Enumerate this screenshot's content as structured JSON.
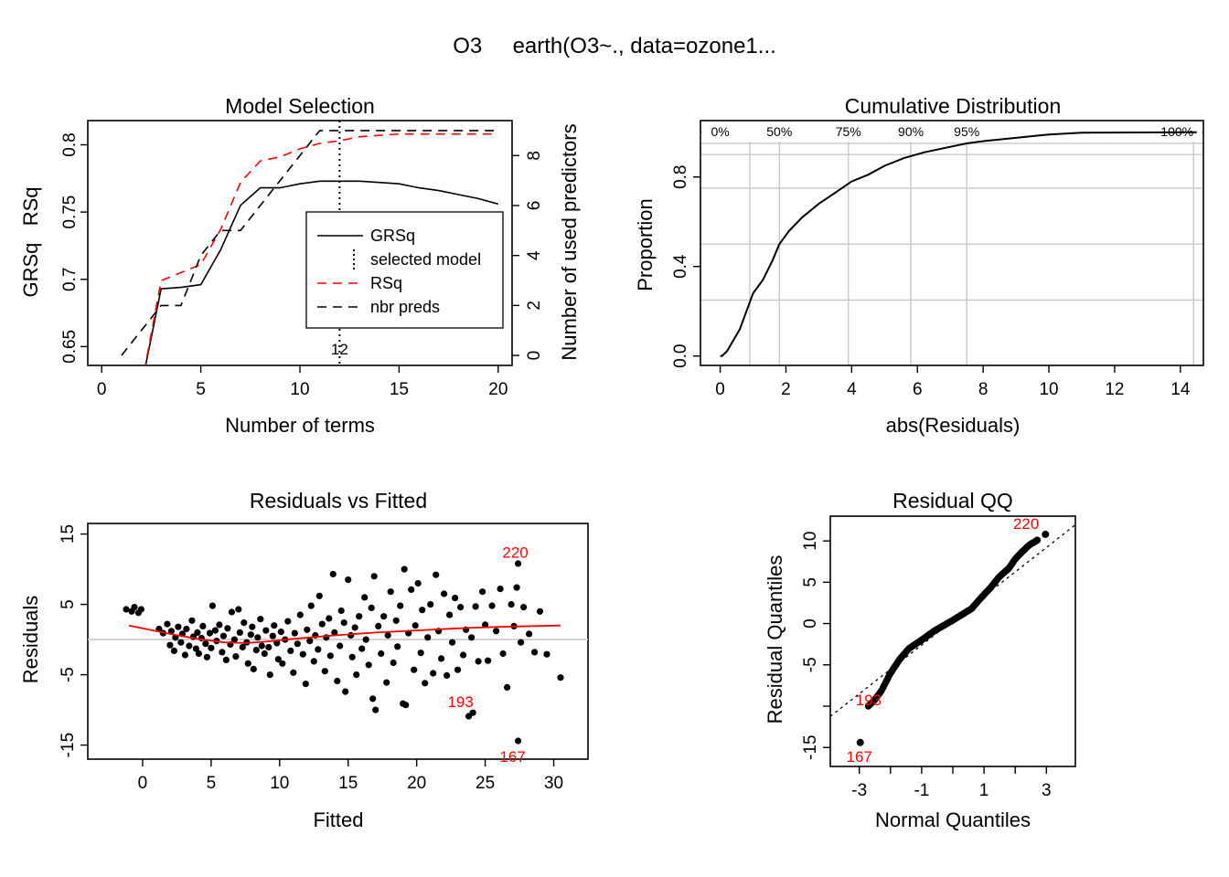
{
  "figure": {
    "title": "O3     earth(O3~., data=ozone1..."
  },
  "chart_data": [
    {
      "id": "model-selection",
      "type": "line",
      "title": "Model Selection",
      "xlabel": "Number of terms",
      "ylabel_left": "GRSq   RSq",
      "ylabel_right": "Number of used predictors",
      "xlim": [
        0,
        20
      ],
      "ylim_left": [
        0.636,
        0.818
      ],
      "ylim_right": [
        0,
        9
      ],
      "x_ticks": [
        "0",
        "5",
        "10",
        "15",
        "20"
      ],
      "y_ticks_left": [
        "0.65",
        "0.7",
        "0.75",
        "0.8"
      ],
      "y_ticks_right": [
        "0",
        "2",
        "4",
        "6",
        "8"
      ],
      "selected_model": 12,
      "selected_label": "12",
      "legend": {
        "position": "center-right",
        "items": [
          {
            "label": "GRSq",
            "style": "solid",
            "color": "#000000"
          },
          {
            "label": "selected model",
            "style": "dotted-vertical",
            "color": "#000000"
          },
          {
            "label": "RSq",
            "style": "dashed",
            "color": "#ff0000"
          },
          {
            "label": "nbr preds",
            "style": "dashed",
            "color": "#000000"
          }
        ]
      },
      "series": [
        {
          "name": "GRSq",
          "axis": "left",
          "color": "#000000",
          "style": "solid",
          "x": [
            2,
            3,
            4,
            5,
            6,
            7,
            8,
            9,
            10,
            11,
            12,
            13,
            14,
            15,
            16,
            17,
            18,
            19,
            20
          ],
          "values": [
            0.62,
            0.693,
            0.694,
            0.696,
            0.722,
            0.755,
            0.768,
            0.768,
            0.771,
            0.773,
            0.773,
            0.773,
            0.772,
            0.771,
            0.768,
            0.766,
            0.763,
            0.76,
            0.756
          ]
        },
        {
          "name": "RSq",
          "axis": "left",
          "color": "#ff0000",
          "style": "dashed",
          "x": [
            2,
            3,
            4,
            5,
            6,
            7,
            8,
            9,
            10,
            11,
            12,
            13,
            14,
            15,
            16,
            17,
            18,
            19,
            20
          ],
          "values": [
            0.62,
            0.699,
            0.705,
            0.711,
            0.737,
            0.772,
            0.788,
            0.791,
            0.797,
            0.801,
            0.803,
            0.806,
            0.807,
            0.808,
            0.808,
            0.808,
            0.808,
            0.808,
            0.808
          ]
        },
        {
          "name": "nbr preds",
          "axis": "right",
          "color": "#000000",
          "style": "dashed",
          "x": [
            1,
            2,
            3,
            4,
            5,
            6,
            7,
            8,
            9,
            10,
            11,
            12,
            13,
            14,
            15,
            16,
            17,
            18,
            19,
            20
          ],
          "values": [
            0,
            1,
            2,
            2,
            4,
            5,
            5,
            6,
            7,
            8,
            9,
            9,
            9,
            9,
            9,
            9,
            9,
            9,
            9,
            9
          ]
        }
      ]
    },
    {
      "id": "cumulative-distribution",
      "type": "line",
      "title": "Cumulative Distribution",
      "xlabel": "abs(Residuals)",
      "ylabel": "Proportion",
      "xlim": [
        0,
        14.7
      ],
      "ylim": [
        0,
        1.05
      ],
      "x_ticks": [
        "0",
        "2",
        "4",
        "6",
        "8",
        "10",
        "12",
        "14"
      ],
      "y_ticks": [
        "0.0",
        "0.4",
        "0.8"
      ],
      "grid": true,
      "quantile_labels": [
        {
          "label": "0%",
          "x": 0.0
        },
        {
          "label": "50%",
          "x": 1.8
        },
        {
          "label": "75%",
          "x": 3.9
        },
        {
          "label": "90%",
          "x": 5.8
        },
        {
          "label": "95%",
          "x": 7.5
        },
        {
          "label": "100%",
          "x": 14.4
        }
      ],
      "horizontal_grid": [
        0.25,
        0.5,
        0.75,
        0.9,
        0.95,
        1.0
      ],
      "series": [
        {
          "name": "",
          "color": "#000000",
          "x": [
            0,
            0.05,
            0.2,
            0.4,
            0.6,
            0.8,
            1.0,
            1.3,
            1.6,
            1.8,
            2.1,
            2.5,
            3.0,
            3.5,
            4.0,
            4.5,
            5.0,
            5.6,
            6.2,
            7.0,
            7.5,
            8.0,
            9.0,
            10.0,
            11.0,
            14.5
          ],
          "values": [
            0,
            0,
            0.02,
            0.07,
            0.12,
            0.2,
            0.28,
            0.34,
            0.43,
            0.5,
            0.56,
            0.62,
            0.68,
            0.73,
            0.78,
            0.81,
            0.85,
            0.885,
            0.91,
            0.935,
            0.95,
            0.96,
            0.975,
            0.99,
            0.998,
            1.0
          ]
        }
      ]
    },
    {
      "id": "residuals-vs-fitted",
      "type": "scatter",
      "title": "Residuals vs Fitted",
      "xlabel": "Fitted",
      "ylabel": "Residuals",
      "xlim": [
        -4,
        32.5
      ],
      "ylim": [
        -17,
        16.5
      ],
      "x_ticks": [
        "0",
        "5",
        "10",
        "15",
        "20",
        "25",
        "30"
      ],
      "y_ticks": [
        "-15",
        "-5",
        "5",
        "15"
      ],
      "reference_line_y": 0,
      "smooth": {
        "color": "#ff0000",
        "x": [
          -1,
          2,
          4,
          6,
          7.5,
          9,
          11,
          14,
          17,
          20,
          23,
          26,
          30.5
        ],
        "values": [
          2.0,
          0.8,
          0.1,
          -0.4,
          -0.5,
          -0.3,
          0.1,
          0.6,
          1.0,
          1.3,
          1.6,
          1.8,
          2.0
        ]
      },
      "annotations": [
        {
          "label": "220",
          "x": 27.2,
          "y": 12.4
        },
        {
          "label": "193",
          "x": 23.2,
          "y": -8.8
        },
        {
          "label": "167",
          "x": 27.0,
          "y": -16.6
        }
      ],
      "points": [
        [
          -1.2,
          4.3
        ],
        [
          -0.8,
          4.0
        ],
        [
          -0.6,
          4.6
        ],
        [
          -0.3,
          3.8
        ],
        [
          -0.1,
          4.3
        ],
        [
          1.2,
          1.5
        ],
        [
          1.5,
          0.9
        ],
        [
          1.8,
          2.2
        ],
        [
          2.0,
          -0.8
        ],
        [
          2.1,
          1.2
        ],
        [
          2.3,
          -1.6
        ],
        [
          2.4,
          0.3
        ],
        [
          2.6,
          1.8
        ],
        [
          2.8,
          -0.4
        ],
        [
          2.9,
          0.8
        ],
        [
          3.1,
          -2.2
        ],
        [
          3.2,
          1.5
        ],
        [
          3.4,
          -0.9
        ],
        [
          3.6,
          2.7
        ],
        [
          3.7,
          0.4
        ],
        [
          3.9,
          -1.3
        ],
        [
          4.0,
          1.0
        ],
        [
          4.1,
          -2.0
        ],
        [
          4.3,
          0.2
        ],
        [
          4.4,
          1.9
        ],
        [
          4.6,
          -0.6
        ],
        [
          4.7,
          -2.5
        ],
        [
          4.9,
          0.9
        ],
        [
          5.0,
          -1.2
        ],
        [
          5.1,
          4.8
        ],
        [
          5.3,
          1.3
        ],
        [
          5.4,
          -0.2
        ],
        [
          5.6,
          2.1
        ],
        [
          5.8,
          -1.8
        ],
        [
          5.9,
          0.5
        ],
        [
          6.1,
          -2.9
        ],
        [
          6.2,
          1.6
        ],
        [
          6.4,
          -0.7
        ],
        [
          6.5,
          3.9
        ],
        [
          6.7,
          0.0
        ],
        [
          6.8,
          -2.4
        ],
        [
          7.0,
          4.3
        ],
        [
          7.1,
          1.0
        ],
        [
          7.3,
          -1.1
        ],
        [
          7.4,
          2.4
        ],
        [
          7.6,
          -0.4
        ],
        [
          7.7,
          -3.4
        ],
        [
          7.9,
          0.7
        ],
        [
          8.0,
          1.8
        ],
        [
          8.1,
          -4.2
        ],
        [
          8.3,
          -1.5
        ],
        [
          8.4,
          0.3
        ],
        [
          8.6,
          2.9
        ],
        [
          8.7,
          -0.9
        ],
        [
          8.9,
          -2.0
        ],
        [
          9.0,
          1.3
        ],
        [
          9.2,
          -1.1
        ],
        [
          9.3,
          -5.0
        ],
        [
          9.5,
          0.5
        ],
        [
          9.6,
          2.0
        ],
        [
          9.8,
          -0.5
        ],
        [
          9.9,
          -2.8
        ],
        [
          10.1,
          1.1
        ],
        [
          10.2,
          -3.4
        ],
        [
          10.4,
          0.0
        ],
        [
          10.6,
          2.6
        ],
        [
          10.8,
          -1.6
        ],
        [
          11.0,
          -4.7
        ],
        [
          11.1,
          0.9
        ],
        [
          11.3,
          -0.6
        ],
        [
          11.5,
          3.5
        ],
        [
          11.7,
          -2.1
        ],
        [
          11.9,
          -6.3
        ],
        [
          12.0,
          1.4
        ],
        [
          12.2,
          -0.2
        ],
        [
          12.3,
          4.8
        ],
        [
          12.5,
          -3.1
        ],
        [
          12.6,
          0.6
        ],
        [
          12.8,
          -1.4
        ],
        [
          12.9,
          6.2
        ],
        [
          13.1,
          2.2
        ],
        [
          13.3,
          -4.5
        ],
        [
          13.4,
          0.3
        ],
        [
          13.6,
          3.0
        ],
        [
          13.7,
          -2.3
        ],
        [
          13.9,
          9.3
        ],
        [
          14.0,
          1.0
        ],
        [
          14.2,
          -5.9
        ],
        [
          14.4,
          -0.9
        ],
        [
          14.5,
          4.1
        ],
        [
          14.7,
          2.4
        ],
        [
          14.8,
          -7.4
        ],
        [
          15.0,
          8.5
        ],
        [
          15.2,
          0.6
        ],
        [
          15.3,
          -2.5
        ],
        [
          15.5,
          1.7
        ],
        [
          15.6,
          -5.0
        ],
        [
          15.8,
          3.3
        ],
        [
          16.0,
          -1.3
        ],
        [
          16.2,
          6.0
        ],
        [
          16.3,
          0.0
        ],
        [
          16.5,
          -3.6
        ],
        [
          16.7,
          4.5
        ],
        [
          16.8,
          -8.4
        ],
        [
          16.9,
          9.0
        ],
        [
          17.0,
          -10.0
        ],
        [
          17.2,
          1.9
        ],
        [
          17.4,
          -2.0
        ],
        [
          17.6,
          3.3
        ],
        [
          17.8,
          -6.1
        ],
        [
          17.9,
          0.6
        ],
        [
          18.1,
          6.8
        ],
        [
          18.3,
          -3.3
        ],
        [
          18.5,
          2.7
        ],
        [
          18.6,
          -1.0
        ],
        [
          18.8,
          4.8
        ],
        [
          19.0,
          -9.1
        ],
        [
          19.1,
          10.0
        ],
        [
          19.2,
          -9.3
        ],
        [
          19.4,
          0.9
        ],
        [
          19.6,
          7.1
        ],
        [
          19.8,
          -4.3
        ],
        [
          19.9,
          2.0
        ],
        [
          20.1,
          8.0
        ],
        [
          20.3,
          -1.9
        ],
        [
          20.4,
          4.2
        ],
        [
          20.6,
          -6.2
        ],
        [
          20.8,
          0.3
        ],
        [
          21.0,
          5.0
        ],
        [
          21.2,
          -4.8
        ],
        [
          21.4,
          9.2
        ],
        [
          21.6,
          1.2
        ],
        [
          21.8,
          -2.7
        ],
        [
          22.0,
          6.5
        ],
        [
          22.2,
          -5.1
        ],
        [
          22.4,
          3.5
        ],
        [
          22.6,
          -0.4
        ],
        [
          22.8,
          5.9
        ],
        [
          23.0,
          -4.3
        ],
        [
          23.2,
          4.6
        ],
        [
          23.4,
          -2.2
        ],
        [
          23.6,
          1.4
        ],
        [
          23.8,
          -10.9
        ],
        [
          24.0,
          0.3
        ],
        [
          24.1,
          -10.4
        ],
        [
          24.3,
          4.7
        ],
        [
          24.5,
          -3.1
        ],
        [
          24.8,
          6.8
        ],
        [
          25.0,
          2.1
        ],
        [
          25.2,
          -3.0
        ],
        [
          25.5,
          4.8
        ],
        [
          25.8,
          1.2
        ],
        [
          26.1,
          7.2
        ],
        [
          26.3,
          -2.0
        ],
        [
          26.6,
          -6.8
        ],
        [
          26.9,
          5.0
        ],
        [
          27.1,
          1.9
        ],
        [
          27.3,
          7.4
        ],
        [
          27.4,
          10.8
        ],
        [
          27.4,
          -14.4
        ],
        [
          27.6,
          -0.4
        ],
        [
          27.8,
          4.6
        ],
        [
          28.2,
          0.8
        ],
        [
          28.6,
          -1.8
        ],
        [
          29.0,
          4.0
        ],
        [
          29.5,
          -2.1
        ],
        [
          30.5,
          -5.4
        ]
      ]
    },
    {
      "id": "residual-qq",
      "type": "scatter",
      "title": "Residual QQ",
      "xlabel": "Normal Quantiles",
      "ylabel": "Residual Quantiles",
      "xlim": [
        -3.93,
        3.93
      ],
      "ylim": [
        -17.3,
        13.0
      ],
      "x_ticks": [
        "-3",
        "-1",
        "1",
        "3"
      ],
      "y_ticks": [
        "-15",
        "-5",
        "0",
        "5",
        "10"
      ],
      "reference_line": {
        "intercept": 0.35,
        "slope": 2.95
      },
      "annotations": [
        {
          "label": "220",
          "x": 2.35,
          "y": 12.1
        },
        {
          "label": "193",
          "x": -2.7,
          "y": -9.2
        },
        {
          "label": "167",
          "x": -3.0,
          "y": -16.1
        }
      ],
      "curve": {
        "x": [
          -2.97,
          -2.71,
          -2.5,
          -2.3,
          -2.0,
          -1.7,
          -1.4,
          -1.0,
          -0.6,
          0.0,
          0.6,
          0.9,
          1.2,
          1.5,
          1.8,
          2.0,
          2.2,
          2.45,
          2.71,
          2.97
        ],
        "values": [
          -14.4,
          -10.0,
          -9.2,
          -8.2,
          -6.0,
          -4.3,
          -3.0,
          -2.0,
          -0.9,
          0.4,
          1.8,
          3.1,
          4.3,
          5.7,
          6.7,
          7.8,
          8.6,
          9.5,
          10.1,
          10.8
        ]
      }
    }
  ]
}
